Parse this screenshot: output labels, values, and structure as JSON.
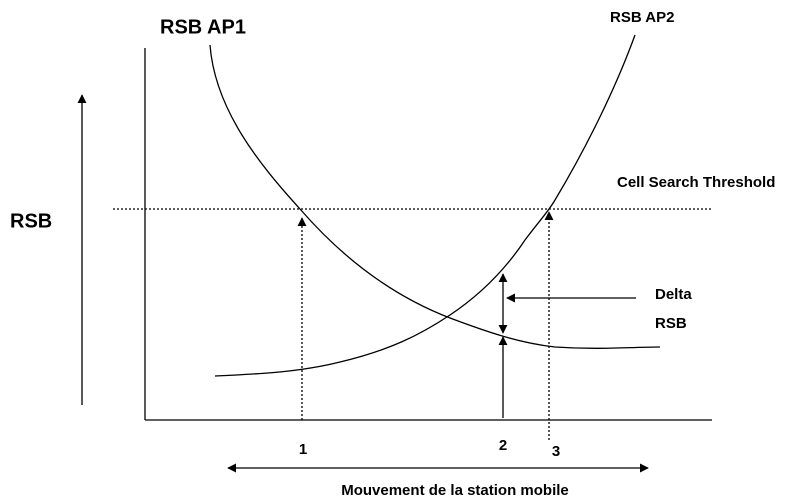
{
  "curves": {
    "ap1": "RSB AP1",
    "ap2": "RSB AP2"
  },
  "axis": {
    "y_label": "RSB",
    "x_label": "Mouvement de la station mobile"
  },
  "threshold": "Cell Search Threshold",
  "delta": {
    "line1": "Delta",
    "line2": "RSB"
  },
  "points": [
    "1",
    "2",
    "3"
  ]
}
